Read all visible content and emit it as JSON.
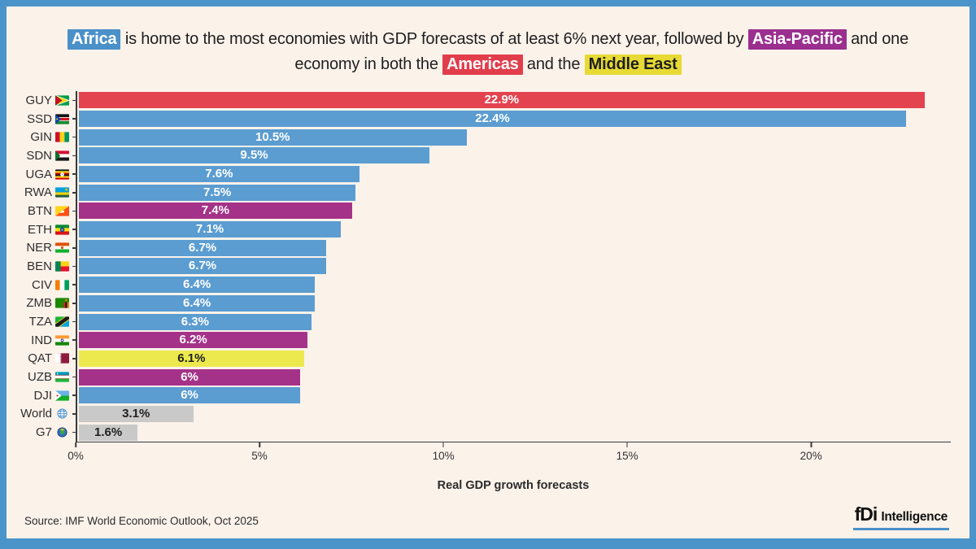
{
  "frame": {
    "border_color": "#4a94c9",
    "background": "#fbf2ea"
  },
  "title": {
    "segments": [
      {
        "text": "Africa",
        "highlight": "#4a90c9",
        "color": "#ffffff"
      },
      {
        "text": " is home to the most economies with GDP forecasts of at least 6% next year, followed by "
      },
      {
        "text": "Asia-Pacific",
        "highlight": "#9b2f8f",
        "color": "#ffffff"
      },
      {
        "text": " and one"
      },
      {
        "br": true
      },
      {
        "text": "economy in both the "
      },
      {
        "text": "Americas",
        "highlight": "#e23d4b",
        "color": "#ffffff"
      },
      {
        "text": " and the "
      },
      {
        "text": "Middle East",
        "highlight": "#e7da35",
        "color": "#1f1f1f"
      }
    ]
  },
  "chart_data": {
    "type": "bar",
    "orientation": "horizontal",
    "title": "Africa is home to the most economies with GDP forecasts of at least 6% next year, followed by Asia-Pacific and one economy in both the Americas and the Middle East",
    "xlabel": "Real GDP growth forecasts",
    "xlim": [
      0,
      23.8
    ],
    "xticks": [
      0,
      5,
      10,
      15,
      20
    ],
    "xtick_labels": [
      "0%",
      "5%",
      "10%",
      "15%",
      "20%"
    ],
    "grid": false,
    "legend": "none (regions encoded via title highlight colors)",
    "categories": [
      "GUY",
      "SSD",
      "GIN",
      "SDN",
      "UGA",
      "RWA",
      "BTN",
      "ETH",
      "NER",
      "BEN",
      "CIV",
      "ZMB",
      "TZA",
      "IND",
      "QAT",
      "UZB",
      "DJI",
      "World",
      "G7"
    ],
    "values": [
      22.9,
      22.4,
      10.5,
      9.5,
      7.6,
      7.5,
      7.4,
      7.1,
      6.7,
      6.7,
      6.4,
      6.4,
      6.3,
      6.2,
      6.1,
      6,
      6,
      3.1,
      1.6
    ],
    "value_labels": [
      "22.9%",
      "22.4%",
      "10.5%",
      "9.5%",
      "7.6%",
      "7.5%",
      "7.4%",
      "7.1%",
      "6.7%",
      "6.7%",
      "6.4%",
      "6.4%",
      "6.3%",
      "6.2%",
      "6.1%",
      "6%",
      "6%",
      "3.1%",
      "1.6%"
    ],
    "regions": [
      "americas",
      "africa",
      "africa",
      "africa",
      "africa",
      "africa",
      "asia-pacific",
      "africa",
      "africa",
      "africa",
      "africa",
      "africa",
      "africa",
      "asia-pacific",
      "middle-east",
      "asia-pacific",
      "africa",
      "world-aggregate",
      "world-aggregate"
    ],
    "flags": [
      "guyana",
      "south-sudan",
      "guinea",
      "sudan",
      "uganda",
      "rwanda",
      "bhutan",
      "ethiopia",
      "niger",
      "benin",
      "cote-divoire",
      "zambia",
      "tanzania",
      "india",
      "qatar",
      "uzbekistan",
      "djibouti",
      "globe",
      "earth"
    ],
    "region_colors": {
      "africa": "#5b9cd1",
      "americas": "#e2434f",
      "asia-pacific": "#a53289",
      "middle-east": "#ece94e",
      "world-aggregate": "#c9c9c9"
    },
    "label_text_colors": {
      "africa": "#ffffff",
      "americas": "#ffffff",
      "asia-pacific": "#ffffff",
      "middle-east": "#1f1f1f",
      "world-aggregate": "#1f1f1f"
    }
  },
  "footer": {
    "source": "Source: IMF World Economic Outlook, Oct 2025",
    "logo_fdi": "fDi",
    "logo_text": "Intelligence",
    "logo_accent": "#4a90c9"
  }
}
